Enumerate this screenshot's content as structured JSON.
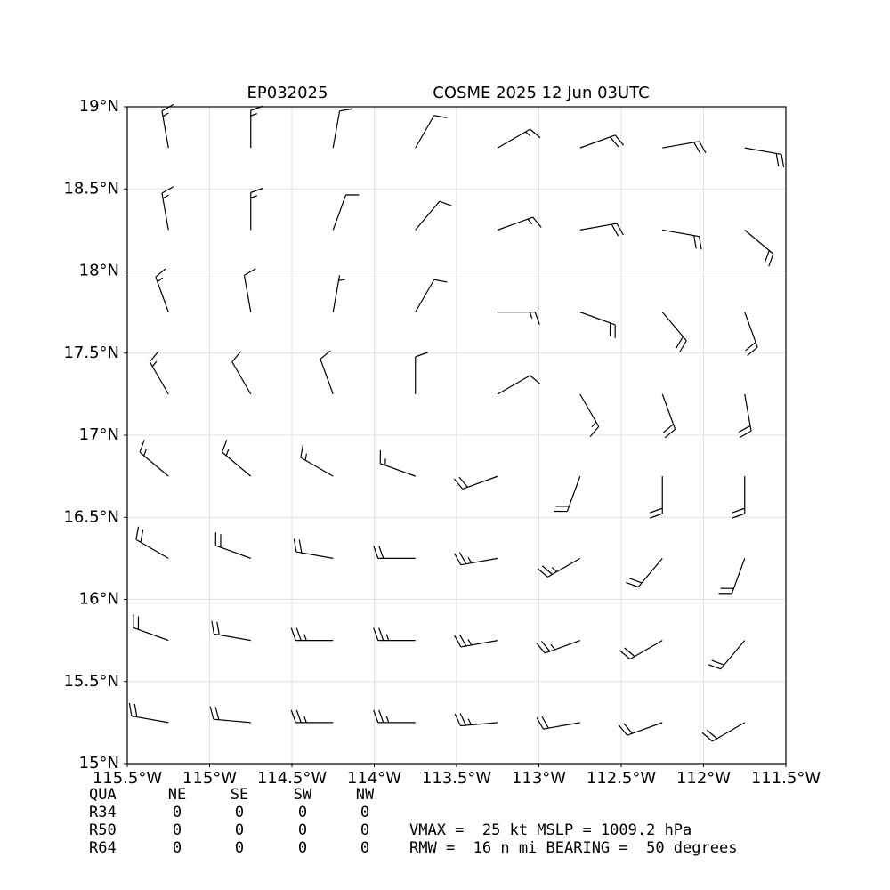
{
  "chart_data": {
    "type": "barbs",
    "title_left": "EP032025",
    "title": "COSME 2025 12 Jun 03UTC",
    "xlim": [
      -115.5,
      -111.5
    ],
    "ylim": [
      15,
      19
    ],
    "xticks": [
      {
        "value": -115.5,
        "label": "115.5°W"
      },
      {
        "value": -115,
        "label": "115°W"
      },
      {
        "value": -114.5,
        "label": "114.5°W"
      },
      {
        "value": -114,
        "label": "114°W"
      },
      {
        "value": -113.5,
        "label": "113.5°W"
      },
      {
        "value": -113,
        "label": "113°W"
      },
      {
        "value": -112.5,
        "label": "112.5°W"
      },
      {
        "value": -112,
        "label": "112°W"
      },
      {
        "value": -111.5,
        "label": "111.5°W"
      }
    ],
    "yticks": [
      {
        "value": 15,
        "label": "15°N"
      },
      {
        "value": 15.5,
        "label": "15.5°N"
      },
      {
        "value": 16,
        "label": "16°N"
      },
      {
        "value": 16.5,
        "label": "16.5°N"
      },
      {
        "value": 17,
        "label": "17°N"
      },
      {
        "value": 17.5,
        "label": "17.5°N"
      },
      {
        "value": 18,
        "label": "18°N"
      },
      {
        "value": 18.5,
        "label": "18.5°N"
      },
      {
        "value": 19,
        "label": "19°N"
      }
    ],
    "grid": true,
    "color": "#000000",
    "barbs": {
      "lons": [
        -115.25,
        -114.75,
        -114.25,
        -113.75,
        -113.25,
        -112.75,
        -112.25,
        -111.75
      ],
      "lats": [
        18.75,
        18.25,
        17.75,
        17.25,
        16.75,
        16.25,
        15.75,
        15.25
      ],
      "direction": [
        [
          350,
          0,
          10,
          30,
          60,
          70,
          80,
          100
        ],
        [
          350,
          0,
          20,
          40,
          70,
          80,
          100,
          130
        ],
        [
          340,
          350,
          10,
          30,
          90,
          110,
          140,
          160
        ],
        [
          330,
          330,
          340,
          0,
          60,
          150,
          160,
          170
        ],
        [
          310,
          310,
          300,
          290,
          250,
          200,
          180,
          180
        ],
        [
          300,
          290,
          280,
          270,
          260,
          240,
          220,
          200
        ],
        [
          290,
          280,
          270,
          270,
          260,
          250,
          240,
          220
        ],
        [
          280,
          275,
          270,
          270,
          265,
          260,
          250,
          240
        ]
      ],
      "speed": [
        [
          15,
          15,
          10,
          10,
          15,
          20,
          20,
          20
        ],
        [
          15,
          15,
          10,
          10,
          15,
          20,
          20,
          20
        ],
        [
          15,
          10,
          5,
          10,
          15,
          20,
          20,
          20
        ],
        [
          15,
          10,
          10,
          10,
          10,
          15,
          20,
          20
        ],
        [
          15,
          15,
          15,
          15,
          20,
          20,
          20,
          20
        ],
        [
          20,
          20,
          20,
          20,
          25,
          25,
          20,
          20
        ],
        [
          20,
          20,
          25,
          25,
          25,
          25,
          20,
          20
        ],
        [
          20,
          20,
          25,
          25,
          25,
          20,
          20,
          20
        ]
      ]
    }
  },
  "info": {
    "header": [
      "QUA",
      "NE",
      "SE",
      "SW",
      "NW"
    ],
    "rows": [
      [
        "R34",
        "0",
        "0",
        "0",
        "0"
      ],
      [
        "R50",
        "0",
        "0",
        "0",
        "0"
      ],
      [
        "R64",
        "0",
        "0",
        "0",
        "0"
      ]
    ],
    "lines": [
      "VMAX =  25 kt MSLP = 1009.2 hPa",
      "RMW =  16 n mi BEARING =  50 degrees"
    ]
  }
}
